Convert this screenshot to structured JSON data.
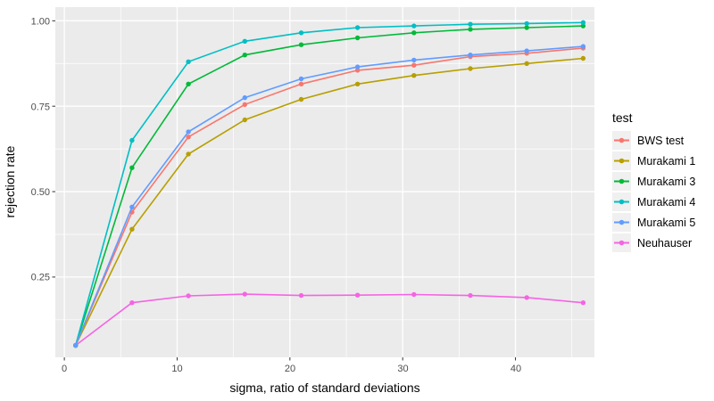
{
  "axes": {
    "xlabel": "sigma, ratio of standard deviations",
    "ylabel": "rejection rate",
    "x_tick_labels": [
      "0",
      "10",
      "20",
      "30",
      "40"
    ],
    "y_tick_labels": [
      "0.25",
      "0.50",
      "0.75",
      "1.00"
    ]
  },
  "legend": {
    "title": "test",
    "entries": [
      {
        "label": "BWS test"
      },
      {
        "label": "Murakami 1"
      },
      {
        "label": "Murakami 3"
      },
      {
        "label": "Murakami 4"
      },
      {
        "label": "Murakami 5"
      },
      {
        "label": "Neuhauser"
      }
    ]
  },
  "colors": {
    "background": "#FFFFFF",
    "panel_bg": "#EBEBEB",
    "gridline": "#FFFFFF",
    "tick_mark": "#333333",
    "tick_label": "#4D4D4D",
    "axis_title": "#000000",
    "legend_key_bg": "#F0F0F0"
  },
  "chart_data": {
    "type": "line",
    "style": "ggplot2",
    "title": "",
    "xlabel": "sigma, ratio of standard deviations",
    "ylabel": "rejection rate",
    "x": [
      1,
      6,
      11,
      16,
      21,
      26,
      31,
      36,
      41,
      46
    ],
    "series": [
      {
        "name": "BWS test",
        "color": "#F8766D",
        "values": [
          0.05,
          0.44,
          0.66,
          0.755,
          0.815,
          0.855,
          0.87,
          0.895,
          0.905,
          0.92
        ]
      },
      {
        "name": "Murakami 1",
        "color": "#B79F00",
        "values": [
          0.05,
          0.39,
          0.61,
          0.71,
          0.77,
          0.815,
          0.84,
          0.86,
          0.875,
          0.89
        ]
      },
      {
        "name": "Murakami 3",
        "color": "#00BA38",
        "values": [
          0.05,
          0.57,
          0.815,
          0.9,
          0.93,
          0.95,
          0.965,
          0.975,
          0.98,
          0.985
        ]
      },
      {
        "name": "Murakami 4",
        "color": "#00BFC4",
        "values": [
          0.05,
          0.65,
          0.88,
          0.94,
          0.965,
          0.98,
          0.985,
          0.99,
          0.992,
          0.995
        ]
      },
      {
        "name": "Murakami 5",
        "color": "#619CFF",
        "values": [
          0.05,
          0.455,
          0.675,
          0.775,
          0.83,
          0.865,
          0.885,
          0.9,
          0.912,
          0.925
        ]
      },
      {
        "name": "Neuhauser",
        "color": "#F564E3",
        "values": [
          0.05,
          0.175,
          0.195,
          0.2,
          0.196,
          0.197,
          0.199,
          0.196,
          0.19,
          0.175
        ]
      }
    ],
    "xlim": [
      -0.8,
      47
    ],
    "ylim": [
      0.015,
      1.04
    ],
    "x_major_gridlines": [
      0,
      10,
      20,
      30,
      40
    ],
    "x_minor_gridlines": [
      5,
      15,
      25,
      35,
      45
    ],
    "y_major_gridlines": [
      0.25,
      0.5,
      0.75,
      1.0
    ],
    "y_minor_gridlines": [
      0.125,
      0.375,
      0.625,
      0.875
    ],
    "grid": true,
    "legend_position": "right",
    "legend_title": "test"
  }
}
